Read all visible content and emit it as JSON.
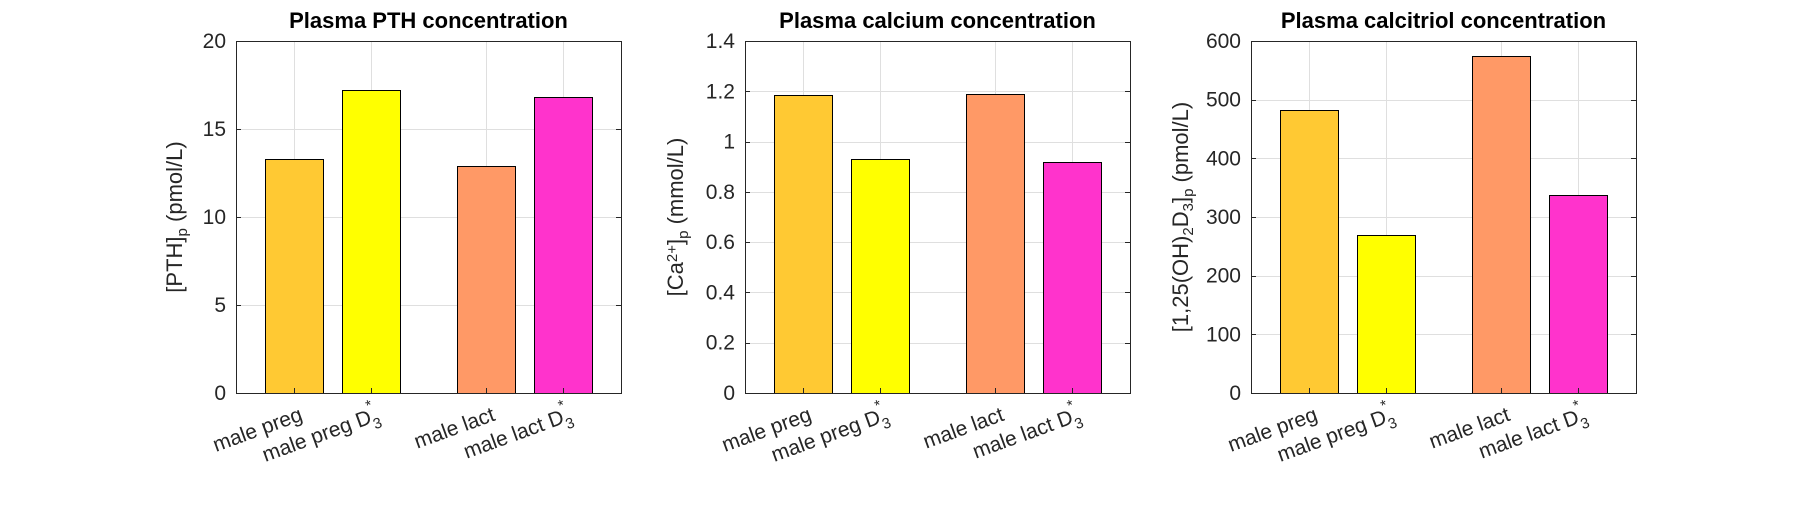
{
  "chart_data": [
    {
      "type": "bar",
      "title": "Plasma PTH concentration",
      "ylabel": {
        "base": "[PTH]",
        "sub": "p",
        "unit": " (pmol/L)"
      },
      "ylim": [
        0,
        20
      ],
      "yticks": [
        0,
        5,
        10,
        15,
        20
      ],
      "yticklabels": [
        "0",
        "5",
        "10",
        "15",
        "20"
      ],
      "categories": [
        {
          "label": "male preg",
          "star": false
        },
        {
          "label": "male preg D",
          "sub": "3",
          "star": true
        },
        {
          "label": "male lact",
          "star": false
        },
        {
          "label": "male lact D",
          "sub": "3",
          "star": true
        }
      ],
      "values": [
        13.3,
        17.2,
        12.9,
        16.8
      ],
      "colors": [
        "#ffc933",
        "#ffff00",
        "#ff9966",
        "#ff33cc"
      ],
      "grid": true
    },
    {
      "type": "bar",
      "title": "Plasma calcium concentration",
      "ylabel": {
        "base": "[Ca",
        "sup": "2+",
        "close": "]",
        "sub": "p",
        "unit": " (mmol/L)"
      },
      "ylim": [
        0,
        1.4
      ],
      "yticks": [
        0,
        0.2,
        0.4,
        0.6,
        0.8,
        1,
        1.2,
        1.4
      ],
      "yticklabels": [
        "0",
        "0.2",
        "0.4",
        "0.6",
        "0.8",
        "1",
        "1.2",
        "1.4"
      ],
      "categories": [
        {
          "label": "male preg",
          "star": false
        },
        {
          "label": "male preg D",
          "sub": "3",
          "star": true
        },
        {
          "label": "male lact",
          "star": false
        },
        {
          "label": "male lact D",
          "sub": "3",
          "star": true
        }
      ],
      "values": [
        1.185,
        0.93,
        1.19,
        0.92
      ],
      "colors": [
        "#ffc933",
        "#ffff00",
        "#ff9966",
        "#ff33cc"
      ],
      "grid": true
    },
    {
      "type": "bar",
      "title": "Plasma calcitriol concentration",
      "ylabel": {
        "segments": [
          [
            "[1,25(OH)",
            ""
          ],
          [
            "2",
            "sub"
          ],
          [
            "D",
            ""
          ],
          [
            "3",
            "sub"
          ],
          [
            "]",
            ""
          ],
          [
            "p",
            "sub"
          ],
          [
            " (pmol/L)",
            ""
          ]
        ]
      },
      "ylim": [
        0,
        600
      ],
      "yticks": [
        0,
        100,
        200,
        300,
        400,
        500,
        600
      ],
      "yticklabels": [
        "0",
        "100",
        "200",
        "300",
        "400",
        "500",
        "600"
      ],
      "categories": [
        {
          "label": "male preg",
          "star": false
        },
        {
          "label": "male preg D",
          "sub": "3",
          "star": true
        },
        {
          "label": "male lact",
          "star": false
        },
        {
          "label": "male lact D",
          "sub": "3",
          "star": true
        }
      ],
      "values": [
        482,
        269,
        574,
        337
      ],
      "colors": [
        "#ffc933",
        "#ffff00",
        "#ff9966",
        "#ff33cc"
      ],
      "grid": true
    }
  ]
}
